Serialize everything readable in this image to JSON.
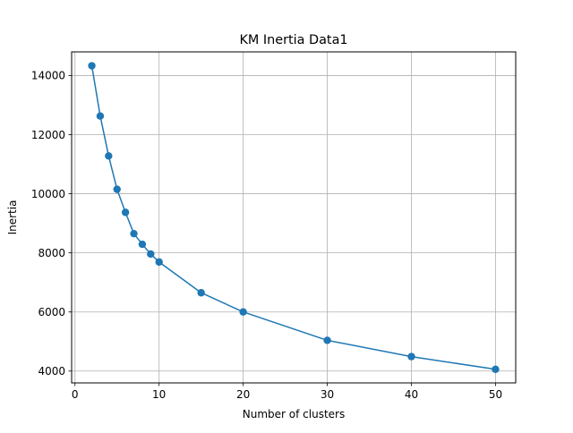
{
  "chart_data": {
    "type": "line",
    "title": "KM Inertia Data1",
    "xlabel": "Number of clusters",
    "ylabel": "Inertia",
    "xlim": [
      -0.4,
      52.4
    ],
    "ylim": [
      3600,
      14800
    ],
    "xticks": [
      0,
      10,
      20,
      30,
      40,
      50
    ],
    "yticks": [
      4000,
      6000,
      8000,
      10000,
      12000,
      14000
    ],
    "grid": true,
    "legend": false,
    "series": [
      {
        "color": "#1f77b4",
        "marker": "circle",
        "x": [
          2,
          3,
          4,
          5,
          6,
          7,
          8,
          9,
          10,
          15,
          20,
          30,
          40,
          50
        ],
        "y": [
          14330,
          12630,
          11280,
          10150,
          9370,
          8650,
          8290,
          7960,
          7690,
          6650,
          6000,
          5040,
          4490,
          4060
        ]
      }
    ]
  }
}
